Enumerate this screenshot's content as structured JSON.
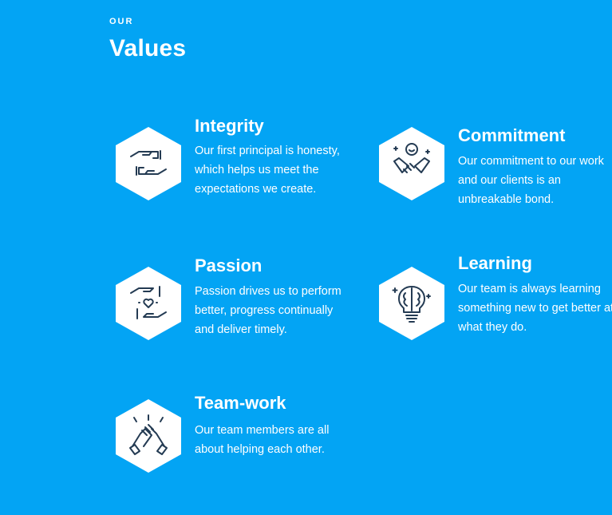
{
  "section": {
    "eyebrow": "OUR",
    "title": "Values"
  },
  "colors": {
    "background": "#03A4F4",
    "hexagon": "#FFFFFF",
    "icon_stroke": "#243B53"
  },
  "values": [
    {
      "title": "Integrity",
      "description": "Our first principal is honesty, which helps us meet the expectations we create.",
      "icon": "reaching-hands-icon"
    },
    {
      "title": "Commitment",
      "description": "Our commitment to our work and our clients is an unbreakable bond.",
      "icon": "handshake-icon"
    },
    {
      "title": "Passion",
      "description": "Passion drives us to perform better, progress continually and deliver timely.",
      "icon": "hands-heart-icon"
    },
    {
      "title": "Learning",
      "description": "Our team is always learning something new to get better at what they do.",
      "icon": "brain-bulb-icon"
    },
    {
      "title": "Team-work",
      "description": "Our team members are all about helping each other.",
      "icon": "clasped-hands-icon"
    }
  ]
}
